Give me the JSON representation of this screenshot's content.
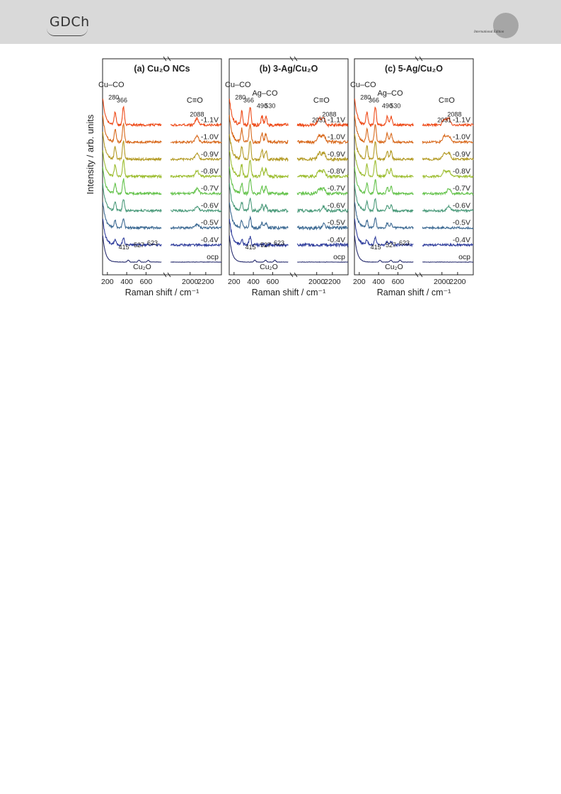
{
  "header": {
    "brand_text": "GDCh",
    "edition_text": "International Edition",
    "background": "#d9d9d9"
  },
  "figure": {
    "ylabel": "Intensity / arb. units",
    "xlabel": "Raman shift / cm⁻¹",
    "colors": {
      "ocp": "#2a2f70",
      "-0.4V": "#2f3d9c",
      "-0.5V": "#3d6a93",
      "-0.6V": "#4a9a7a",
      "-0.7V": "#63c24a",
      "-0.8V": "#9cbd2f",
      "-0.9V": "#b39a24",
      "-1.0V": "#d8691c",
      "-1.1V": "#ee4a18"
    }
  },
  "chart_data": [
    {
      "type": "line",
      "title": "(a) Cu₂O NCs",
      "xlabel": "Raman shift / cm⁻¹",
      "ylabel": "Intensity / arb. units",
      "x_tick_labels_left": [
        "200",
        "400",
        "600"
      ],
      "x_tick_labels_right": [
        "2000",
        "2200"
      ],
      "xlim_left": [
        150,
        780
      ],
      "xlim_right": [
        1750,
        2400
      ],
      "series": [
        {
          "name": "ocp",
          "peaks": [
            415,
            527,
            623
          ]
        },
        {
          "name": "-0.4V",
          "peaks": [
            280,
            366
          ]
        },
        {
          "name": "-0.5V",
          "peaks": [
            280,
            366,
            2088
          ]
        },
        {
          "name": "-0.6V",
          "peaks": [
            280,
            366,
            2088
          ]
        },
        {
          "name": "-0.7V",
          "peaks": [
            280,
            366,
            2088
          ]
        },
        {
          "name": "-0.8V",
          "peaks": [
            280,
            366,
            2088
          ]
        },
        {
          "name": "-0.9V",
          "peaks": [
            280,
            366,
            2088
          ]
        },
        {
          "name": "-1.0V",
          "peaks": [
            280,
            366,
            2088
          ]
        },
        {
          "name": "-1.1V",
          "peaks": [
            280,
            366,
            2088
          ]
        }
      ],
      "annotations": {
        "cu_co": "Cu–CO",
        "c_o": "C≡O",
        "cu2o": "Cu₂O",
        "peak_labels_top": [
          "280",
          "366"
        ],
        "peak_label_co": "2088",
        "peak_labels_cu2o": [
          "415",
          "527",
          "623"
        ]
      }
    },
    {
      "type": "line",
      "title": "(b) 3-Ag/Cu₂O",
      "xlabel": "Raman shift / cm⁻¹",
      "x_tick_labels_left": [
        "200",
        "400",
        "600"
      ],
      "x_tick_labels_right": [
        "2000",
        "2200"
      ],
      "xlim_left": [
        150,
        780
      ],
      "xlim_right": [
        1750,
        2400
      ],
      "series": [
        {
          "name": "ocp",
          "peaks": [
            415,
            527,
            623
          ]
        },
        {
          "name": "-0.4V",
          "peaks": [
            280,
            366
          ]
        },
        {
          "name": "-0.5V",
          "peaks": [
            280,
            366,
            490,
            530,
            2088
          ]
        },
        {
          "name": "-0.6V",
          "peaks": [
            280,
            366,
            490,
            530,
            2088
          ]
        },
        {
          "name": "-0.7V",
          "peaks": [
            280,
            366,
            490,
            530,
            2031,
            2088
          ]
        },
        {
          "name": "-0.8V",
          "peaks": [
            280,
            366,
            490,
            530,
            2031,
            2088
          ]
        },
        {
          "name": "-0.9V",
          "peaks": [
            280,
            366,
            490,
            530,
            2031,
            2088
          ]
        },
        {
          "name": "-1.0V",
          "peaks": [
            280,
            366,
            490,
            530,
            2031,
            2088
          ]
        },
        {
          "name": "-1.1V",
          "peaks": [
            280,
            366,
            490,
            530,
            2031,
            2088
          ]
        }
      ],
      "annotations": {
        "cu_co": "Cu–CO",
        "ag_co": "Ag–CO",
        "c_o": "C≡O",
        "cu2o": "Cu₂O",
        "peak_labels_cu": [
          "280",
          "366"
        ],
        "peak_labels_ag": [
          "490",
          "530"
        ],
        "peak_labels_co": [
          "2031",
          "2088"
        ],
        "peak_labels_cu2o": [
          "415",
          "527",
          "623"
        ]
      }
    },
    {
      "type": "line",
      "title": "(c) 5-Ag/Cu₂O",
      "xlabel": "Raman shift / cm⁻¹",
      "x_tick_labels_left": [
        "200",
        "400",
        "600"
      ],
      "x_tick_labels_right": [
        "2000",
        "2200"
      ],
      "xlim_left": [
        150,
        780
      ],
      "xlim_right": [
        1750,
        2400
      ],
      "series": [
        {
          "name": "ocp",
          "peaks": [
            415,
            527,
            623
          ]
        },
        {
          "name": "-0.4V",
          "peaks": [
            280,
            366,
            490,
            530
          ]
        },
        {
          "name": "-0.5V",
          "peaks": [
            280,
            366,
            490,
            530
          ]
        },
        {
          "name": "-0.6V",
          "peaks": [
            280,
            366,
            490,
            530,
            2088
          ]
        },
        {
          "name": "-0.7V",
          "peaks": [
            280,
            366,
            490,
            530,
            2088
          ]
        },
        {
          "name": "-0.8V",
          "peaks": [
            280,
            366,
            490,
            530,
            2031,
            2088
          ]
        },
        {
          "name": "-0.9V",
          "peaks": [
            280,
            366,
            490,
            530,
            2031,
            2088
          ]
        },
        {
          "name": "-1.0V",
          "peaks": [
            280,
            366,
            490,
            530,
            2031,
            2088
          ]
        },
        {
          "name": "-1.1V",
          "peaks": [
            280,
            366,
            490,
            530,
            2031,
            2088
          ]
        }
      ],
      "annotations": {
        "cu_co": "Cu–CO",
        "ag_co": "Ag–CO",
        "c_o": "C≡O",
        "cu2o": "Cu₂O",
        "peak_labels_cu": [
          "280",
          "366"
        ],
        "peak_labels_ag": [
          "490",
          "530"
        ],
        "peak_labels_co": [
          "2031",
          "2088"
        ],
        "peak_labels_cu2o": [
          "415",
          "527",
          "623"
        ]
      }
    }
  ]
}
